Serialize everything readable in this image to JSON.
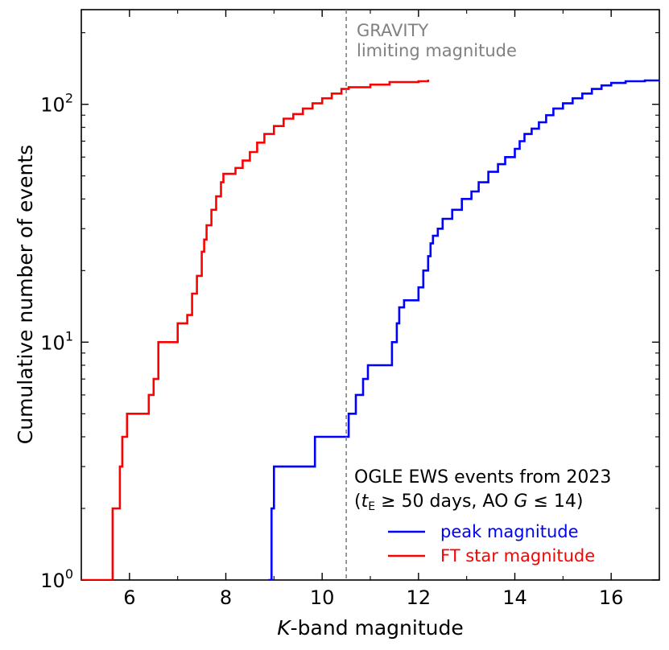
{
  "chart_data": {
    "type": "line",
    "xlabel_italic": "K",
    "xlabel_rest": "-band magnitude",
    "ylabel": "Cumulative number of events",
    "xlim": [
      5.0,
      17.0
    ],
    "ylim": [
      1.0,
      250.0
    ],
    "yscale": "log",
    "x_ticks": [
      6,
      8,
      10,
      12,
      14,
      16
    ],
    "x_tick_labels": [
      "6",
      "8",
      "10",
      "12",
      "14",
      "16"
    ],
    "y_major_ticks": [
      1,
      10,
      100
    ],
    "y_tick_labels": [
      {
        "base": "10",
        "exp": "0"
      },
      {
        "base": "10",
        "exp": "1"
      },
      {
        "base": "10",
        "exp": "2"
      }
    ],
    "grid": false,
    "legend_position": "lower-right",
    "legend_title_line1": "OGLE EWS events from 2023",
    "legend_title_line2": {
      "open": "(",
      "t": "t",
      "sub": "E",
      "rel1": " ≥ 50 days, AO ",
      "g": "G",
      "rel2": " ≤ 14)"
    },
    "vline": {
      "x": 10.5,
      "color": "#808080",
      "label_line1": "GRAVITY",
      "label_line2": "limiting magnitude"
    },
    "series": [
      {
        "name": "peak magnitude",
        "color": "#0000ff",
        "points": [
          [
            8.9,
            0.9
          ],
          [
            8.9,
            1
          ],
          [
            8.95,
            1
          ],
          [
            8.95,
            2
          ],
          [
            9.0,
            2
          ],
          [
            9.0,
            3
          ],
          [
            9.85,
            3
          ],
          [
            9.85,
            4
          ],
          [
            10.55,
            4
          ],
          [
            10.55,
            5
          ],
          [
            10.7,
            5
          ],
          [
            10.7,
            6
          ],
          [
            10.85,
            6
          ],
          [
            10.85,
            7
          ],
          [
            10.95,
            7
          ],
          [
            10.95,
            8
          ],
          [
            11.45,
            8
          ],
          [
            11.45,
            10
          ],
          [
            11.55,
            10
          ],
          [
            11.55,
            12
          ],
          [
            11.6,
            12
          ],
          [
            11.6,
            14
          ],
          [
            11.7,
            14
          ],
          [
            11.7,
            15
          ],
          [
            12.0,
            15
          ],
          [
            12.0,
            17
          ],
          [
            12.1,
            17
          ],
          [
            12.1,
            20
          ],
          [
            12.2,
            20
          ],
          [
            12.2,
            23
          ],
          [
            12.25,
            23
          ],
          [
            12.25,
            26
          ],
          [
            12.3,
            26
          ],
          [
            12.3,
            28
          ],
          [
            12.4,
            28
          ],
          [
            12.4,
            30
          ],
          [
            12.5,
            30
          ],
          [
            12.5,
            33
          ],
          [
            12.7,
            33
          ],
          [
            12.7,
            36
          ],
          [
            12.9,
            36
          ],
          [
            12.9,
            40
          ],
          [
            13.1,
            40
          ],
          [
            13.1,
            43
          ],
          [
            13.25,
            43
          ],
          [
            13.25,
            47
          ],
          [
            13.45,
            47
          ],
          [
            13.45,
            52
          ],
          [
            13.65,
            52
          ],
          [
            13.65,
            56
          ],
          [
            13.8,
            56
          ],
          [
            13.8,
            60
          ],
          [
            14.0,
            60
          ],
          [
            14.0,
            65
          ],
          [
            14.1,
            65
          ],
          [
            14.1,
            70
          ],
          [
            14.2,
            70
          ],
          [
            14.2,
            75
          ],
          [
            14.35,
            75
          ],
          [
            14.35,
            79
          ],
          [
            14.5,
            79
          ],
          [
            14.5,
            84
          ],
          [
            14.65,
            84
          ],
          [
            14.65,
            90
          ],
          [
            14.8,
            90
          ],
          [
            14.8,
            96
          ],
          [
            15.0,
            96
          ],
          [
            15.0,
            101
          ],
          [
            15.2,
            101
          ],
          [
            15.2,
            106
          ],
          [
            15.4,
            106
          ],
          [
            15.4,
            111
          ],
          [
            15.6,
            111
          ],
          [
            15.6,
            116
          ],
          [
            15.8,
            116
          ],
          [
            15.8,
            120
          ],
          [
            16.0,
            120
          ],
          [
            16.0,
            123
          ],
          [
            16.3,
            123
          ],
          [
            16.3,
            125
          ],
          [
            16.7,
            125
          ],
          [
            16.7,
            126
          ],
          [
            17.0,
            126
          ]
        ]
      },
      {
        "name": "FT star magnitude",
        "color": "#ff0000",
        "points": [
          [
            5.0,
            1
          ],
          [
            5.65,
            1
          ],
          [
            5.65,
            2
          ],
          [
            5.8,
            2
          ],
          [
            5.8,
            3
          ],
          [
            5.85,
            3
          ],
          [
            5.85,
            4
          ],
          [
            5.95,
            4
          ],
          [
            5.95,
            5
          ],
          [
            6.4,
            5
          ],
          [
            6.4,
            6
          ],
          [
            6.5,
            6
          ],
          [
            6.5,
            7
          ],
          [
            6.6,
            7
          ],
          [
            6.6,
            10
          ],
          [
            7.0,
            10
          ],
          [
            7.0,
            12
          ],
          [
            7.2,
            12
          ],
          [
            7.2,
            13
          ],
          [
            7.3,
            13
          ],
          [
            7.3,
            16
          ],
          [
            7.4,
            16
          ],
          [
            7.4,
            19
          ],
          [
            7.5,
            19
          ],
          [
            7.5,
            24
          ],
          [
            7.55,
            24
          ],
          [
            7.55,
            27
          ],
          [
            7.6,
            27
          ],
          [
            7.6,
            31
          ],
          [
            7.7,
            31
          ],
          [
            7.7,
            36
          ],
          [
            7.8,
            36
          ],
          [
            7.8,
            41
          ],
          [
            7.9,
            41
          ],
          [
            7.9,
            47
          ],
          [
            7.95,
            47
          ],
          [
            7.95,
            51
          ],
          [
            8.2,
            51
          ],
          [
            8.2,
            54
          ],
          [
            8.35,
            54
          ],
          [
            8.35,
            58
          ],
          [
            8.5,
            58
          ],
          [
            8.5,
            63
          ],
          [
            8.65,
            63
          ],
          [
            8.65,
            69
          ],
          [
            8.8,
            69
          ],
          [
            8.8,
            75
          ],
          [
            9.0,
            75
          ],
          [
            9.0,
            81
          ],
          [
            9.2,
            81
          ],
          [
            9.2,
            87
          ],
          [
            9.4,
            87
          ],
          [
            9.4,
            91
          ],
          [
            9.6,
            91
          ],
          [
            9.6,
            96
          ],
          [
            9.8,
            96
          ],
          [
            9.8,
            101
          ],
          [
            10.0,
            101
          ],
          [
            10.0,
            106
          ],
          [
            10.2,
            106
          ],
          [
            10.2,
            111
          ],
          [
            10.4,
            111
          ],
          [
            10.4,
            116
          ],
          [
            10.55,
            116
          ],
          [
            10.55,
            118
          ],
          [
            11.0,
            118
          ],
          [
            11.0,
            121
          ],
          [
            11.4,
            121
          ],
          [
            11.4,
            124
          ],
          [
            12.0,
            124
          ],
          [
            12.0,
            125
          ],
          [
            12.2,
            125
          ],
          [
            12.2,
            127
          ]
        ]
      }
    ]
  }
}
